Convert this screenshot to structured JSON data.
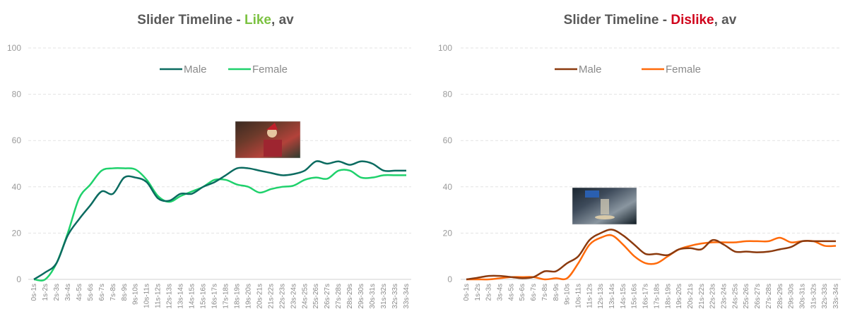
{
  "chart_data": [
    {
      "type": "line",
      "title": {
        "prefix": "Slider Timeline - ",
        "highlight": "Like",
        "suffix": ", av"
      },
      "highlight_color": "#7cc242",
      "ylim": [
        0,
        100
      ],
      "yticks": [
        "0",
        "20",
        "40",
        "60",
        "80",
        "100"
      ],
      "grid": true,
      "legend": "top-center",
      "categories": [
        "0s-1s",
        "1s-2s",
        "2s-3s",
        "3s-4s",
        "4s-5s",
        "5s-6s",
        "6s-7s",
        "7s-8s",
        "8s-9s",
        "9s-10s",
        "10s-11s",
        "11s-12s",
        "12s-13s",
        "13s-14s",
        "14s-15s",
        "15s-16s",
        "16s-17s",
        "17s-18s",
        "18s-19s",
        "19s-20s",
        "20s-21s",
        "21s-22s",
        "22s-23s",
        "23s-24s",
        "24s-25s",
        "25s-26s",
        "26s-27s",
        "27s-28s",
        "28s-29s",
        "29s-30s",
        "30s-31s",
        "31s-32s",
        "32s-33s",
        "33s-34s"
      ],
      "series": [
        {
          "name": "Male",
          "color": "#0b6b60",
          "values": [
            0,
            3,
            7,
            19,
            26,
            32,
            38,
            37,
            44,
            44,
            42,
            35,
            34,
            37,
            37,
            40,
            42,
            45,
            48,
            48,
            47,
            46,
            45,
            45.5,
            47,
            51,
            50,
            51,
            49.5,
            51,
            50,
            47,
            47,
            47
          ]
        },
        {
          "name": "Female",
          "color": "#1fd16c",
          "values": [
            0,
            0,
            7,
            20,
            35,
            41,
            47,
            48,
            48,
            47.5,
            43,
            36,
            33.5,
            36,
            38,
            40,
            43,
            43,
            41,
            40,
            37.5,
            39,
            40,
            40.5,
            43,
            44,
            43.5,
            47,
            47,
            44,
            44,
            45,
            45,
            45
          ]
        }
      ],
      "annotation_image": "christmas-woman-drinking"
    },
    {
      "type": "line",
      "title": {
        "prefix": "Slider Timeline - ",
        "highlight": "Dislike",
        "suffix": ", av"
      },
      "highlight_color": "#d0021b",
      "ylim": [
        0,
        100
      ],
      "yticks": [
        "0",
        "20",
        "40",
        "60",
        "80",
        "100"
      ],
      "grid": true,
      "legend": "top-center",
      "categories": [
        "0s-1s",
        "1s-2s",
        "2s-3s",
        "3s-4s",
        "4s-5s",
        "5s-6s",
        "6s-7s",
        "7s-8s",
        "8s-9s",
        "9s-10s",
        "10s-11s",
        "11s-12s",
        "12s-13s",
        "13s-14s",
        "14s-15s",
        "15s-16s",
        "16s-17s",
        "17s-18s",
        "18s-19s",
        "19s-20s",
        "20s-21s",
        "21s-22s",
        "22s-23s",
        "23s-24s",
        "24s-25s",
        "25s-26s",
        "26s-27s",
        "27s-28s",
        "28s-29s",
        "29s-30s",
        "30s-31s",
        "31s-32s",
        "32s-33s",
        "33s-34s"
      ],
      "series": [
        {
          "name": "Male",
          "color": "#8b3a0e",
          "values": [
            0,
            0.7,
            1.5,
            1.5,
            1,
            0.5,
            1,
            3.5,
            3.5,
            7,
            10,
            17,
            20,
            21.5,
            19,
            15,
            11,
            11,
            10.5,
            13,
            13.5,
            13,
            17,
            15,
            12,
            12,
            11.7,
            12,
            13,
            14,
            16.5,
            16.5,
            16.5,
            16.5
          ]
        },
        {
          "name": "Female",
          "color": "#ff6a0a",
          "values": [
            0,
            0,
            0,
            0.5,
            1,
            1,
            1,
            0,
            0.5,
            0.5,
            7,
            15,
            18,
            19,
            15,
            10,
            7,
            7,
            10,
            13,
            14.5,
            15.5,
            16,
            16,
            16,
            16.5,
            16.5,
            16.5,
            18,
            16,
            16.5,
            16.5,
            14.5,
            14.5
          ]
        }
      ],
      "annotation_image": "santa-pouring-pepsi"
    }
  ]
}
